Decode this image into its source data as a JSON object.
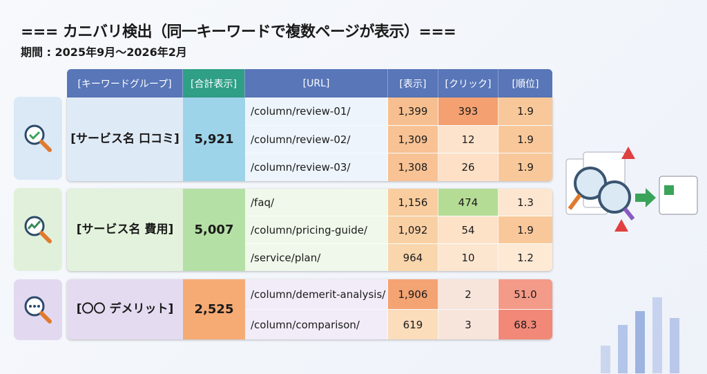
{
  "title": "=== カニバリ検出（同一キーワードで複数ページが表示）===",
  "period": "期間 : 2025年9月～2026年2月",
  "headers": {
    "keyword_group": "[キーワードグループ]",
    "total": "[合計表示]",
    "url": "[URL]",
    "impressions": "[表示]",
    "clicks": "[クリック]",
    "rank": "[順位]"
  },
  "groups": [
    {
      "keyword": "[サービス名 口コミ]",
      "total": "5,921",
      "rows": [
        {
          "url": "/column/review-01/",
          "impressions": "1,399",
          "clicks": "393",
          "rank": "1.9",
          "colors": [
            "#f7bf8f",
            "#f4a070",
            "#f9c89a"
          ]
        },
        {
          "url": "/column/review-02/",
          "impressions": "1,309",
          "clicks": "12",
          "rank": "1.9",
          "colors": [
            "#f8c294",
            "#fde3cc",
            "#f9c89a"
          ]
        },
        {
          "url": "/column/review-03/",
          "impressions": "1,308",
          "clicks": "26",
          "rank": "1.9",
          "colors": [
            "#f8c294",
            "#fde0c6",
            "#f9c89a"
          ]
        }
      ]
    },
    {
      "keyword": "[サービス名 費用]",
      "total": "5,007",
      "rows": [
        {
          "url": "/faq/",
          "impressions": "1,156",
          "clicks": "474",
          "rank": "1.3",
          "colors": [
            "#f9cd9f",
            "#b5dc95",
            "#fde6cf"
          ]
        },
        {
          "url": "/column/pricing-guide/",
          "impressions": "1,092",
          "clicks": "54",
          "rank": "1.9",
          "colors": [
            "#f9d0a4",
            "#fde2c8",
            "#f9c89a"
          ]
        },
        {
          "url": "/service/plan/",
          "impressions": "964",
          "clicks": "10",
          "rank": "1.2",
          "colors": [
            "#fad6ad",
            "#fde6d0",
            "#fde9d4"
          ]
        }
      ]
    },
    {
      "keyword": "[〇〇 デメリット]",
      "total": "2,525",
      "rows": [
        {
          "url": "/column/demerit-analysis/",
          "impressions": "1,906",
          "clicks": "2",
          "rank": "51.0",
          "colors": [
            "#f4a373",
            "#f7e5dc",
            "#f49a88"
          ]
        },
        {
          "url": "/column/comparison/",
          "impressions": "619",
          "clicks": "3",
          "rank": "68.3",
          "colors": [
            "#fbdcbb",
            "#f7e5dc",
            "#f28878"
          ]
        }
      ]
    }
  ]
}
